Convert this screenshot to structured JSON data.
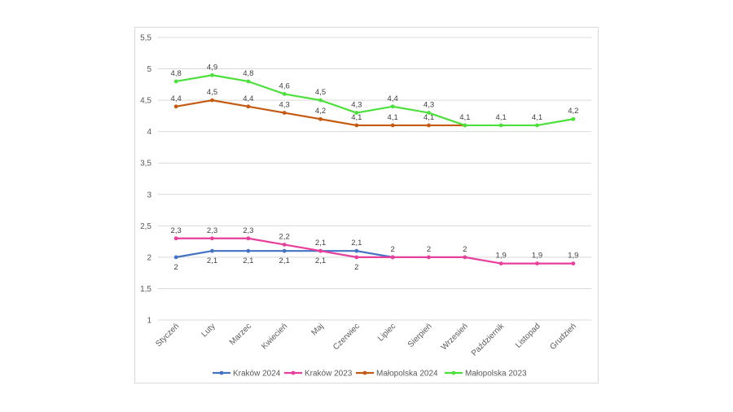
{
  "chart_data": {
    "type": "line",
    "categories": [
      "Styczeń",
      "Luty",
      "Marzec",
      "Kwiecień",
      "Maj",
      "Czerwiec",
      "Lipiec",
      "Sierpień",
      "Wrzesień",
      "Październik",
      "Listopad",
      "Grudzień"
    ],
    "ylim": [
      1,
      5.5
    ],
    "yticks": [
      "1",
      "1,5",
      "2",
      "2,5",
      "3",
      "3,5",
      "4",
      "4,5",
      "5",
      "5,5"
    ],
    "grid": true,
    "legend_position": "bottom",
    "series": [
      {
        "name": "Kraków 2024",
        "color": "#4472C4",
        "values": [
          2,
          2.1,
          2.1,
          2.1,
          2.1,
          2.1,
          2,
          null,
          null,
          null,
          null,
          null
        ],
        "labels": [
          "2",
          "2,1",
          "2,1",
          "2,1",
          "2,1",
          "2,1",
          "2",
          "",
          "",
          "",
          "",
          ""
        ],
        "label_pos": [
          "below",
          "below",
          "below",
          "below",
          "below",
          "above",
          "above",
          "",
          "",
          "",
          "",
          ""
        ]
      },
      {
        "name": "Kraków 2023",
        "color": "#E83E9C",
        "values": [
          2.3,
          2.3,
          2.3,
          2.2,
          2.1,
          2,
          2,
          2,
          2,
          1.9,
          1.9,
          1.9
        ],
        "labels": [
          "2,3",
          "2,3",
          "2,3",
          "2,2",
          "2,1",
          "2",
          "",
          "2",
          "2",
          "1,9",
          "1,9",
          "1,9"
        ],
        "label_pos": [
          "above",
          "above",
          "above",
          "above",
          "above",
          "below",
          "",
          "above",
          "above",
          "above",
          "above",
          "above"
        ]
      },
      {
        "name": "Małopolska 2024",
        "color": "#C55A11",
        "values": [
          4.4,
          4.5,
          4.4,
          4.3,
          4.2,
          4.1,
          4.1,
          4.1,
          4.1,
          null,
          null,
          null
        ],
        "labels": [
          "4,4",
          "4,5",
          "4,4",
          "4,3",
          "4,2",
          "4,1",
          "4,1",
          "4,1",
          "",
          "",
          "",
          ""
        ],
        "label_pos": [
          "above",
          "above",
          "above",
          "above",
          "above",
          "above",
          "above",
          "above",
          "",
          "",
          "",
          ""
        ]
      },
      {
        "name": "Małopolska 2023",
        "color": "#4CE03C",
        "values": [
          4.8,
          4.9,
          4.8,
          4.6,
          4.5,
          4.3,
          4.4,
          4.3,
          4.1,
          4.1,
          4.1,
          4.2
        ],
        "labels": [
          "4,8",
          "4,9",
          "4,8",
          "4,6",
          "4,5",
          "4,3",
          "4,4",
          "4,3",
          "4,1",
          "4,1",
          "4,1",
          "4,2"
        ],
        "label_pos": [
          "above",
          "above",
          "above",
          "above",
          "above",
          "above",
          "above",
          "above",
          "above",
          "above",
          "above",
          "above"
        ]
      }
    ]
  }
}
